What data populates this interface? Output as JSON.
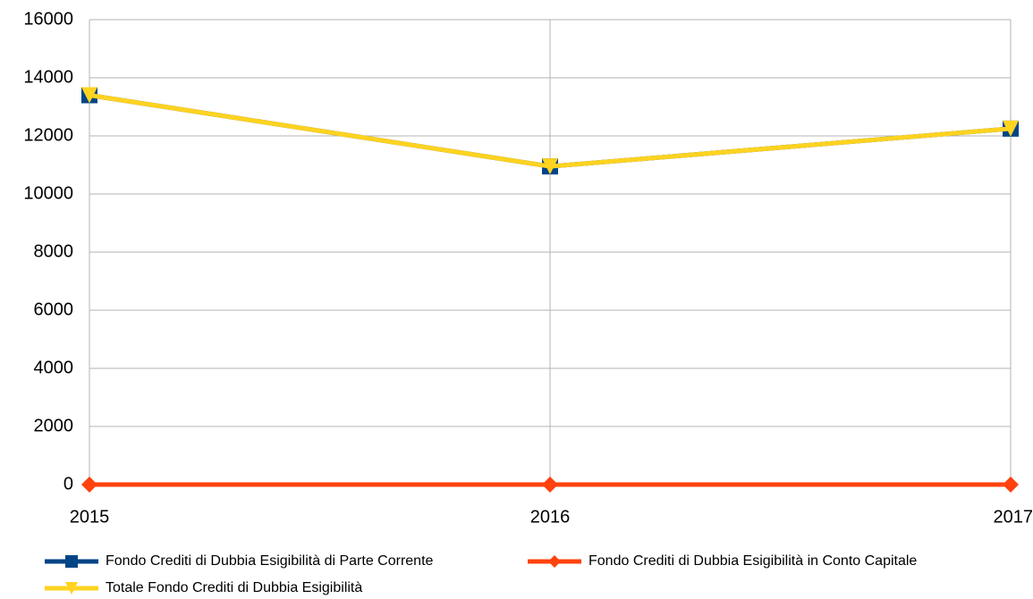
{
  "chart_data": {
    "type": "line",
    "categories": [
      "2015",
      "2016",
      "2017"
    ],
    "series": [
      {
        "name": "Fondo Crediti di Dubbia Esigibilità di Parte Corrente",
        "color": "#004586",
        "marker": "square",
        "values": [
          13400,
          10950,
          12250
        ]
      },
      {
        "name": "Fondo Crediti di Dubbia Esigibilità in Conto Capitale",
        "color": "#ff420e",
        "marker": "diamond",
        "values": [
          0,
          0,
          0
        ]
      },
      {
        "name": "Totale Fondo Crediti di Dubbia Esigibilità",
        "color": "#ffd320",
        "marker": "triangle-down",
        "values": [
          13400,
          10950,
          12250
        ]
      }
    ],
    "ylim": [
      0,
      16000
    ],
    "yticks": [
      0,
      2000,
      4000,
      6000,
      8000,
      10000,
      12000,
      14000,
      16000
    ],
    "grid": true,
    "legend": "bottom"
  }
}
